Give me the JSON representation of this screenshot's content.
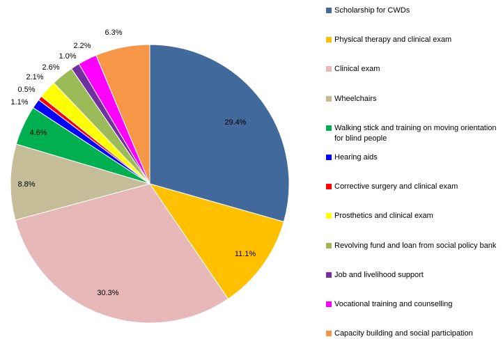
{
  "chart_data": {
    "type": "pie",
    "categories": [
      "Scholarship for CWDs",
      "Physical therapy and clinical exam",
      "Clinical exam",
      "Wheelchairs",
      "Walking stick and training on moving orientation for blind people",
      "Hearing aids",
      "Corrective surgery and clinical exam",
      "Prosthetics and clinical exam",
      "Revolving fund and loan from social policy bank",
      "Job and livelihood support",
      "Vocational training and counselling",
      "Capacity building and social participation"
    ],
    "values": [
      29.4,
      11.1,
      30.3,
      8.8,
      4.6,
      1.1,
      0.5,
      2.1,
      2.6,
      1.0,
      2.2,
      6.3
    ],
    "value_labels": [
      "29.4%",
      "11.1%",
      "30.3%",
      "8.8%",
      "4.6%",
      "1.1%",
      "0.5%",
      "2.1%",
      "2.6%",
      "1.0%",
      "2.2%",
      "6.3%"
    ],
    "colors": [
      "#41699c",
      "#ffc000",
      "#e6b9b8",
      "#c4bd97",
      "#00b050",
      "#0000ff",
      "#ff0000",
      "#ffff00",
      "#9bbb59",
      "#7030a0",
      "#ff00ff",
      "#f79646"
    ],
    "legend": "right"
  }
}
